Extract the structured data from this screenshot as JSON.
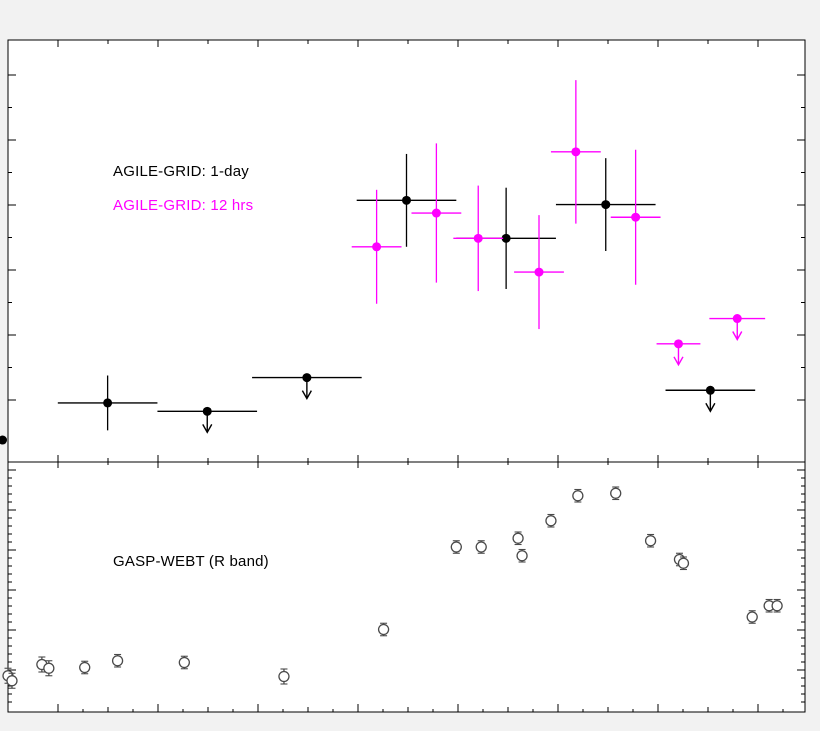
{
  "figure": {
    "background": "#f2f2f2",
    "panel_background": "#ffffff",
    "axis_color": "#000000"
  },
  "top_panel": {
    "legend": [
      {
        "label": "AGILE-GRID: 1-day",
        "color": "#000000"
      },
      {
        "label": "AGILE-GRID: 12 hrs",
        "color": "#ff00ff"
      }
    ]
  },
  "bottom_panel": {
    "label": "GASP-WEBT (R band)",
    "color": "#000000"
  },
  "chart_data": [
    {
      "type": "scatter",
      "panel": "top",
      "title": "AGILE-GRID gamma-ray light curve",
      "xlabel": "",
      "ylabel": "",
      "xlim": [
        0,
        8
      ],
      "ylim": [
        0,
        10
      ],
      "grid": false,
      "legend_position": "upper-left",
      "series": [
        {
          "name": "AGILE-GRID: 1-day",
          "color": "#000000",
          "marker": "filled-circle",
          "points": [
            {
              "x": -0.055,
              "y": 0.52,
              "xerr": 0,
              "yerr": 0,
              "upper_limit": false
            },
            {
              "x": 1.0,
              "y": 1.4,
              "xerr": 0.5,
              "yerr": 0.65,
              "upper_limit": false
            },
            {
              "x": 2.0,
              "y": 1.2,
              "xerr": 0.5,
              "yerr": 0,
              "upper_limit": true
            },
            {
              "x": 3.0,
              "y": 2.0,
              "xerr": 0.55,
              "yerr": 0,
              "upper_limit": true
            },
            {
              "x": 4.0,
              "y": 6.2,
              "xerr": 0.5,
              "yerr": 1.1,
              "upper_limit": false
            },
            {
              "x": 5.0,
              "y": 5.3,
              "xerr": 0.5,
              "yerr": 1.2,
              "upper_limit": false
            },
            {
              "x": 6.0,
              "y": 6.1,
              "xerr": 0.5,
              "yerr": 1.1,
              "upper_limit": false
            },
            {
              "x": 7.05,
              "y": 1.7,
              "xerr": 0.45,
              "yerr": 0,
              "upper_limit": true
            }
          ]
        },
        {
          "name": "AGILE-GRID: 12 hrs",
          "color": "#ff00ff",
          "marker": "filled-circle",
          "points": [
            {
              "x": 3.7,
              "y": 5.1,
              "xerr": 0.25,
              "yerr": 1.35,
              "upper_limit": false
            },
            {
              "x": 4.3,
              "y": 5.9,
              "xerr": 0.25,
              "yerr": 1.65,
              "upper_limit": false
            },
            {
              "x": 4.72,
              "y": 5.3,
              "xerr": 0.25,
              "yerr": 1.25,
              "upper_limit": false
            },
            {
              "x": 5.33,
              "y": 4.5,
              "xerr": 0.25,
              "yerr": 1.35,
              "upper_limit": false
            },
            {
              "x": 5.7,
              "y": 7.35,
              "xerr": 0.25,
              "yerr": 1.7,
              "upper_limit": false
            },
            {
              "x": 6.3,
              "y": 5.8,
              "xerr": 0.25,
              "yerr": 1.6,
              "upper_limit": false
            },
            {
              "x": 6.73,
              "y": 2.8,
              "xerr": 0.22,
              "yerr": 0,
              "upper_limit": true
            },
            {
              "x": 7.32,
              "y": 3.4,
              "xerr": 0.28,
              "yerr": 0,
              "upper_limit": true
            }
          ]
        }
      ]
    },
    {
      "type": "scatter",
      "panel": "bottom",
      "title": "GASP-WEBT (R band) optical light curve",
      "xlabel": "",
      "ylabel": "",
      "xlim": [
        0,
        8
      ],
      "ylim": [
        0,
        10
      ],
      "grid": false,
      "series": [
        {
          "name": "GASP-WEBT (R band)",
          "color": "#4a4a4a",
          "marker": "open-circle",
          "points": [
            {
              "x": 0.0,
              "y": 1.45,
              "yerr": 0.3
            },
            {
              "x": 0.04,
              "y": 1.25,
              "yerr": 0.3
            },
            {
              "x": 0.34,
              "y": 1.9,
              "yerr": 0.3
            },
            {
              "x": 0.41,
              "y": 1.75,
              "yerr": 0.3
            },
            {
              "x": 0.77,
              "y": 1.78,
              "yerr": 0.25
            },
            {
              "x": 1.1,
              "y": 2.05,
              "yerr": 0.25
            },
            {
              "x": 1.77,
              "y": 1.98,
              "yerr": 0.25
            },
            {
              "x": 2.77,
              "y": 1.42,
              "yerr": 0.3
            },
            {
              "x": 3.77,
              "y": 3.3,
              "yerr": 0.25
            },
            {
              "x": 4.5,
              "y": 6.6,
              "yerr": 0.25
            },
            {
              "x": 4.75,
              "y": 6.6,
              "yerr": 0.25
            },
            {
              "x": 5.12,
              "y": 6.95,
              "yerr": 0.25
            },
            {
              "x": 5.16,
              "y": 6.25,
              "yerr": 0.25
            },
            {
              "x": 5.45,
              "y": 7.65,
              "yerr": 0.25
            },
            {
              "x": 5.72,
              "y": 8.65,
              "yerr": 0.25
            },
            {
              "x": 6.1,
              "y": 8.75,
              "yerr": 0.25
            },
            {
              "x": 6.45,
              "y": 6.85,
              "yerr": 0.25
            },
            {
              "x": 6.74,
              "y": 6.1,
              "yerr": 0.25
            },
            {
              "x": 6.78,
              "y": 5.95,
              "yerr": 0.25
            },
            {
              "x": 7.47,
              "y": 3.8,
              "yerr": 0.25
            },
            {
              "x": 7.64,
              "y": 4.25,
              "yerr": 0.25
            },
            {
              "x": 7.72,
              "y": 4.25,
              "yerr": 0.25
            }
          ]
        }
      ]
    }
  ]
}
